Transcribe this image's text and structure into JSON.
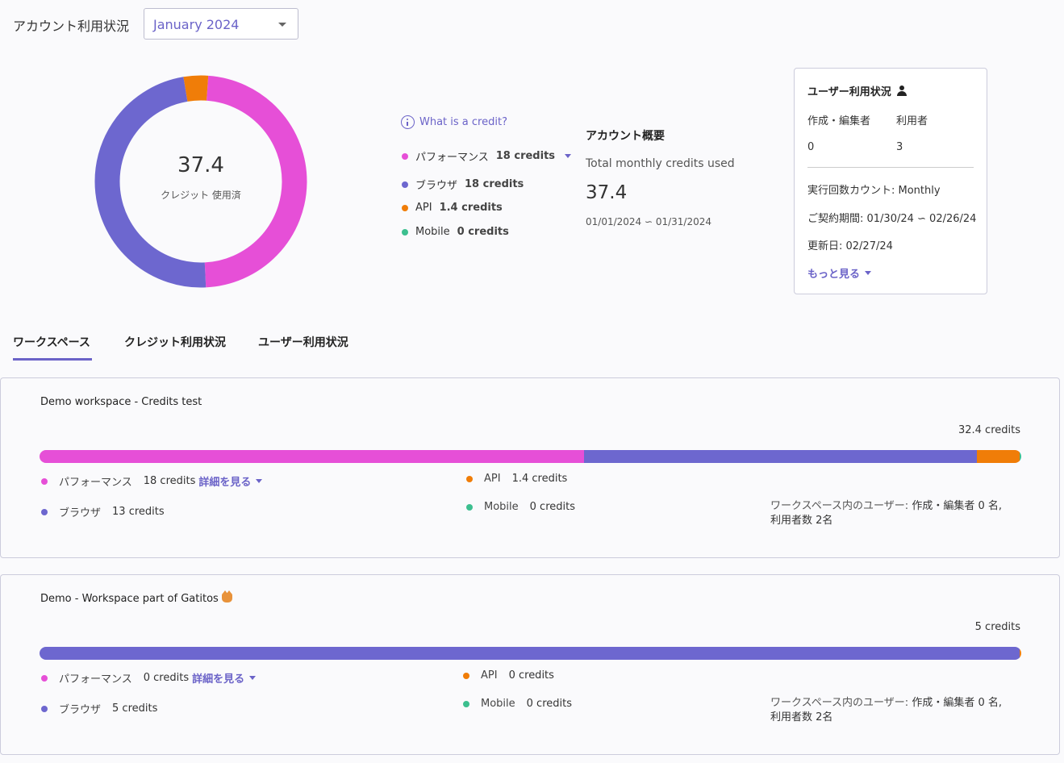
{
  "header": {
    "title": "アカウント利用状況",
    "month_selected": "January 2024"
  },
  "colors": {
    "performance": "#e64fd7",
    "browser": "#6d67cf",
    "api": "#f07d08",
    "mobile": "#3cbf8f",
    "accent": "#6b63c8"
  },
  "donut": {
    "value": "37.4",
    "label": "クレジット 使用済",
    "segments": [
      {
        "name": "パフォーマンス",
        "value": 18
      },
      {
        "name": "ブラウザ",
        "value": 18
      },
      {
        "name": "API",
        "value": 1.4
      },
      {
        "name": "Mobile",
        "value": 0
      }
    ]
  },
  "legend": {
    "what_is_credit": "What is a credit?",
    "items": [
      {
        "label": "パフォーマンス",
        "amount": "18 credits"
      },
      {
        "label": "ブラウザ",
        "amount": "18 credits"
      },
      {
        "label": "API",
        "amount": "1.4 credits"
      },
      {
        "label": "Mobile",
        "amount": "0 credits"
      }
    ]
  },
  "summary": {
    "title": "アカウント概要",
    "subtitle": "Total monthly credits used",
    "value": "37.4",
    "range": "01/01/2024 ∽ 01/31/2024"
  },
  "user_card": {
    "title": "ユーザー利用状況",
    "editors_label": "作成・編集者",
    "users_label": "利用者",
    "editors_value": "0",
    "users_value": "3",
    "count_line": "実行回数カウント: Monthly",
    "contract_line": "ご契約期間: 01/30/24 ∽ 02/26/24",
    "renewal_line": "更新日: 02/27/24",
    "more": "もっと見る"
  },
  "tabs": [
    "ワークスペース",
    "クレジット利用状況",
    "ユーザー利用状況"
  ],
  "workspaces": [
    {
      "name": "Demo workspace - Credits test",
      "total": "32.4 credits",
      "bar_fractions": {
        "performance": 0.555,
        "browser": 0.4,
        "api": 0.0435,
        "mobile": 0.0015
      },
      "performance_label": "パフォーマンス",
      "performance_value": "18 credits",
      "detail_link": "詳細を見る",
      "browser_label": "ブラウザ",
      "browser_value": "13 credits",
      "api_label": "API",
      "api_value": "1.4 credits",
      "mobile_label": "Mobile",
      "mobile_value": "0 credits",
      "users_key": "ワークスペース内のユーザー:",
      "users_line1": "作成・編集者 0 名,",
      "users_line2": "利用者数 2名"
    },
    {
      "name": "Demo - Workspace part of Gatitos",
      "total": "5 credits",
      "bar_fractions": {
        "performance": 0,
        "browser": 0.998,
        "api": 0.002,
        "mobile": 0
      },
      "performance_label": "パフォーマンス",
      "performance_value": "0 credits",
      "detail_link": "詳細を見る",
      "browser_label": "ブラウザ",
      "browser_value": "5 credits",
      "api_label": "API",
      "api_value": "0 credits",
      "mobile_label": "Mobile",
      "mobile_value": "0 credits",
      "users_key": "ワークスペース内のユーザー:",
      "users_line1": "作成・編集者 0 名,",
      "users_line2": "利用者数 2名"
    }
  ]
}
